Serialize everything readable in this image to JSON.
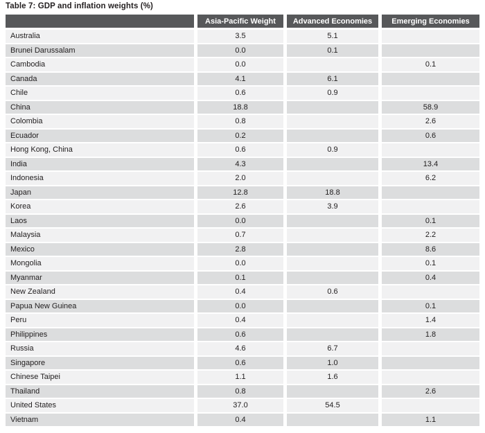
{
  "title": "Table 7: GDP and inflation weights (%)",
  "colors": {
    "header_bg": "#57585a",
    "header_text": "#ffffff",
    "row_light": "#f1f1f2",
    "row_dark": "#dcddde",
    "body_text": "#232021"
  },
  "table": {
    "columns": [
      "",
      "Asia-Pacific Weight",
      "Advanced Economies",
      "Emerging Economies"
    ],
    "rows": [
      [
        "Australia",
        "3.5",
        "5.1",
        ""
      ],
      [
        "Brunei Darussalam",
        "0.0",
        "0.1",
        ""
      ],
      [
        "Cambodia",
        "0.0",
        "",
        "0.1"
      ],
      [
        "Canada",
        "4.1",
        "6.1",
        ""
      ],
      [
        "Chile",
        "0.6",
        "0.9",
        ""
      ],
      [
        "China",
        "18.8",
        "",
        "58.9"
      ],
      [
        "Colombia",
        "0.8",
        "",
        "2.6"
      ],
      [
        "Ecuador",
        "0.2",
        "",
        "0.6"
      ],
      [
        "Hong Kong, China",
        "0.6",
        "0.9",
        ""
      ],
      [
        "India",
        "4.3",
        "",
        "13.4"
      ],
      [
        "Indonesia",
        "2.0",
        "",
        "6.2"
      ],
      [
        "Japan",
        "12.8",
        "18.8",
        ""
      ],
      [
        "Korea",
        "2.6",
        "3.9",
        ""
      ],
      [
        "Laos",
        "0.0",
        "",
        "0.1"
      ],
      [
        "Malaysia",
        "0.7",
        "",
        "2.2"
      ],
      [
        "Mexico",
        "2.8",
        "",
        "8.6"
      ],
      [
        "Mongolia",
        "0.0",
        "",
        "0.1"
      ],
      [
        "Myanmar",
        "0.1",
        "",
        "0.4"
      ],
      [
        "New Zealand",
        "0.4",
        "0.6",
        ""
      ],
      [
        "Papua New Guinea",
        "0.0",
        "",
        "0.1"
      ],
      [
        "Peru",
        "0.4",
        "",
        "1.4"
      ],
      [
        "Philippines",
        "0.6",
        "",
        "1.8"
      ],
      [
        "Russia",
        "4.6",
        "6.7",
        ""
      ],
      [
        "Singapore",
        "0.6",
        "1.0",
        ""
      ],
      [
        "Chinese Taipei",
        "1.1",
        "1.6",
        ""
      ],
      [
        "Thailand",
        "0.8",
        "",
        "2.6"
      ],
      [
        "United States",
        "37.0",
        "54.5",
        ""
      ],
      [
        "Vietnam",
        "0.4",
        "",
        "1.1"
      ]
    ]
  }
}
